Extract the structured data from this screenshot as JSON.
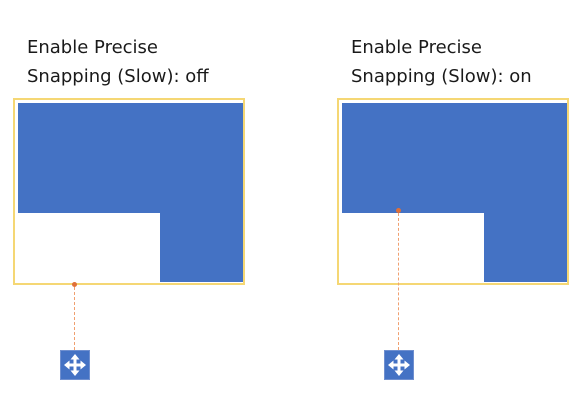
{
  "left": {
    "caption_line1": "Enable Precise",
    "caption_line2": "Snapping (Slow): off",
    "setting_state": "off"
  },
  "right": {
    "caption_line1": "Enable Precise",
    "caption_line2": "Snapping (Slow): on",
    "setting_state": "on"
  },
  "colors": {
    "shape_fill": "#4472c4",
    "selection_border": "#f5d774",
    "anchor_dot": "#e07038",
    "guide_line": "#f0a070",
    "move_handle_fill": "#4472c4"
  },
  "icons": {
    "move_handle": "four-way-arrow-icon",
    "anchor": "snap-anchor-dot"
  }
}
